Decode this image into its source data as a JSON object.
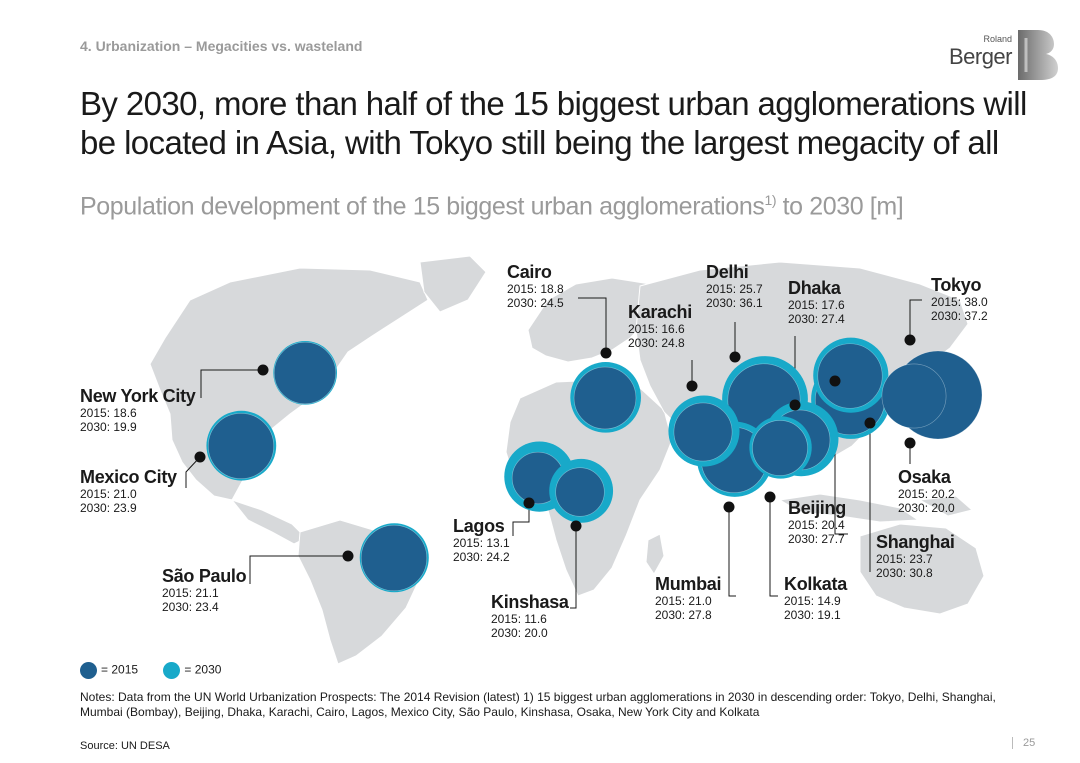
{
  "header": {
    "section": "4. Urbanization – Megacities vs. wasteland",
    "logo_top": "Roland",
    "logo_main": "Berger",
    "title": "By 2030, more than half of the 15 biggest urban agglomerations will be located in Asia, with Tokyo still being the largest megacity of all",
    "subtitle": "Population development of the 15 biggest urban agglomerations",
    "subtitle_sup": "1)",
    "subtitle_tail": " to 2030 [m]"
  },
  "chart_data": {
    "type": "bubble-map",
    "title": "Population development of the 15 biggest urban agglomerations to 2030 [m]",
    "series": [
      {
        "name": "2015",
        "color": "#1f5f8f"
      },
      {
        "name": "2030",
        "color": "#18a9c9"
      }
    ],
    "cities": [
      {
        "name": "Tokyo",
        "v2015": 38.0,
        "v2030": 37.2
      },
      {
        "name": "Delhi",
        "v2015": 25.7,
        "v2030": 36.1
      },
      {
        "name": "Shanghai",
        "v2015": 23.7,
        "v2030": 30.8
      },
      {
        "name": "Mumbai",
        "v2015": 21.0,
        "v2030": 27.8
      },
      {
        "name": "Beijing",
        "v2015": 20.4,
        "v2030": 27.7
      },
      {
        "name": "Dhaka",
        "v2015": 17.6,
        "v2030": 27.4
      },
      {
        "name": "Karachi",
        "v2015": 16.6,
        "v2030": 24.8
      },
      {
        "name": "Cairo",
        "v2015": 18.8,
        "v2030": 24.5
      },
      {
        "name": "Lagos",
        "v2015": 13.1,
        "v2030": 24.2
      },
      {
        "name": "Mexico City",
        "v2015": 21.0,
        "v2030": 23.9
      },
      {
        "name": "São Paulo",
        "v2015": 21.1,
        "v2030": 23.4
      },
      {
        "name": "Kinshasa",
        "v2015": 11.6,
        "v2030": 20.0
      },
      {
        "name": "Osaka",
        "v2015": 20.2,
        "v2030": 20.0
      },
      {
        "name": "New York City",
        "v2015": 18.6,
        "v2030": 19.9
      },
      {
        "name": "Kolkata",
        "v2015": 14.9,
        "v2030": 19.1
      }
    ]
  },
  "legend": {
    "item_2015": "= 2015",
    "item_2030": "= 2030"
  },
  "labels": {
    "prefix_2015": "2015: ",
    "prefix_2030": "2030: "
  },
  "notes": "Notes: Data from the UN World Urbanization Prospects: The 2014 Revision (latest)   1) 15 biggest urban agglomerations in 2030 in descending order: Tokyo, Delhi, Shanghai, Mumbai (Bombay), Beijing, Dhaka, Karachi, Cairo, Lagos, Mexico City, São Paulo, Kinshasa, Osaka, New York City and Kolkata",
  "source": "Source: UN DESA",
  "page_number": "25"
}
